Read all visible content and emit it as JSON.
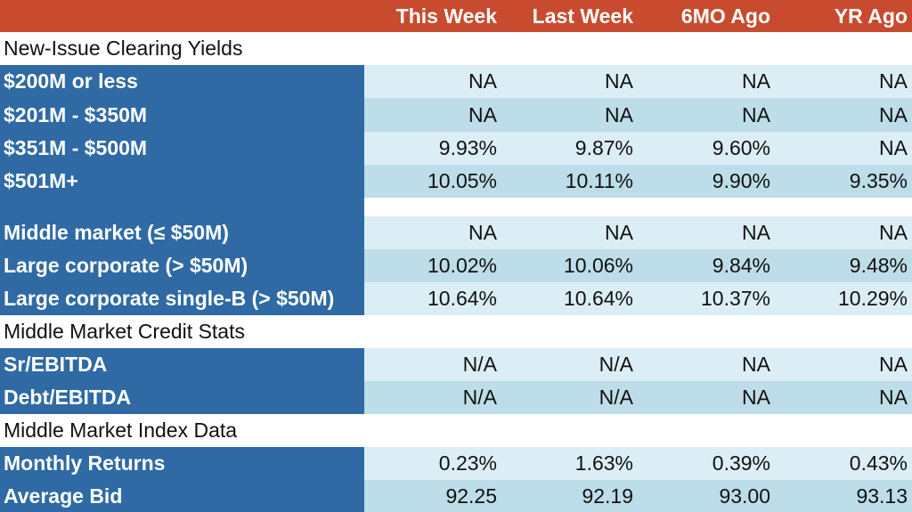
{
  "header": [
    "",
    "This Week",
    "Last Week",
    "6MO Ago",
    "YR Ago"
  ],
  "sections": {
    "new_issue": "New-Issue Clearing Yields",
    "credit_stats": "Middle Market Credit Stats",
    "index_data": "Middle Market Index Data"
  },
  "rows": {
    "r200": {
      "label": "$200M or less",
      "values": [
        "NA",
        "NA",
        "NA",
        "NA"
      ]
    },
    "r201": {
      "label": "$201M - $350M",
      "values": [
        "NA",
        "NA",
        "NA",
        "NA"
      ]
    },
    "r351": {
      "label": "$351M - $500M",
      "values": [
        "9.93%",
        "9.87%",
        "9.60%",
        "NA"
      ]
    },
    "r501": {
      "label": "$501M+",
      "values": [
        "10.05%",
        "10.11%",
        "9.90%",
        "9.35%"
      ]
    },
    "mm": {
      "label": "Middle market (≤ $50M)",
      "values": [
        "NA",
        "NA",
        "NA",
        "NA"
      ]
    },
    "lc": {
      "label": "Large corporate (> $50M)",
      "values": [
        "10.02%",
        "10.06%",
        "9.84%",
        "9.48%"
      ]
    },
    "lcb": {
      "label": "Large corporate single-B (> $50M)",
      "values": [
        "10.64%",
        "10.64%",
        "10.37%",
        "10.29%"
      ]
    },
    "sr": {
      "label": "Sr/EBITDA",
      "values": [
        "N/A",
        "N/A",
        "NA",
        "NA"
      ]
    },
    "debt": {
      "label": "Debt/EBITDA",
      "values": [
        "N/A",
        "N/A",
        "NA",
        "NA"
      ]
    },
    "mret": {
      "label": "Monthly Returns",
      "values": [
        "0.23%",
        "1.63%",
        "0.39%",
        "0.43%"
      ]
    },
    "abid": {
      "label": "Average Bid",
      "values": [
        "92.25",
        "92.19",
        "93.00",
        "93.13"
      ]
    }
  },
  "colors": {
    "header_bg": "#c84b2f",
    "label_bg": "#2f6aa4",
    "row_light": "#dceef5",
    "row_dark": "#bddde8"
  }
}
